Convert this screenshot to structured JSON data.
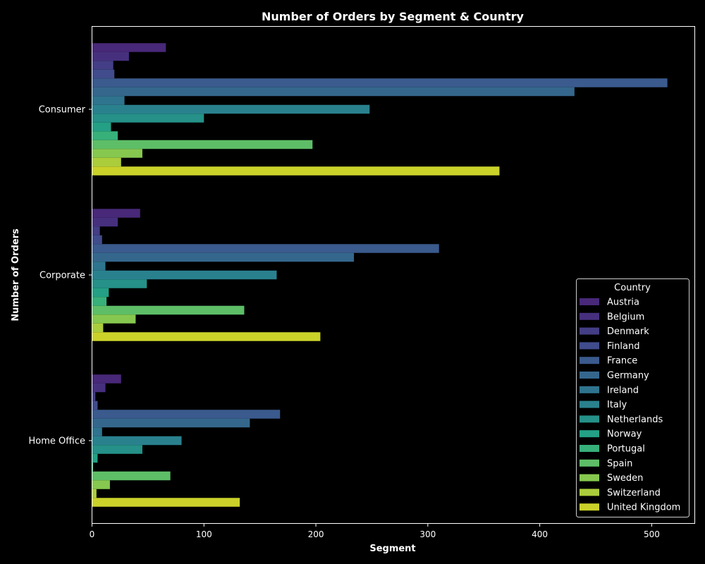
{
  "chart_data": {
    "type": "bar",
    "orientation": "horizontal",
    "title": "Number of Orders by Segment & Country",
    "xlabel": "Segment",
    "ylabel": "Number of Orders",
    "xlim": [
      0,
      540
    ],
    "xticks": [
      0,
      100,
      200,
      300,
      400,
      500
    ],
    "grid": false,
    "legend_title": "Country",
    "legend_position": "lower-right",
    "categories": [
      "Consumer",
      "Corporate",
      "Home Office"
    ],
    "series": [
      {
        "name": "Austria",
        "color": "#482878",
        "values": [
          66,
          43,
          26
        ]
      },
      {
        "name": "Belgium",
        "color": "#46307e",
        "values": [
          33,
          23,
          12
        ]
      },
      {
        "name": "Denmark",
        "color": "#433e85",
        "values": [
          19,
          7,
          3
        ]
      },
      {
        "name": "Finland",
        "color": "#404c8b",
        "values": [
          20,
          9,
          5
        ]
      },
      {
        "name": "France",
        "color": "#3b5a8d",
        "values": [
          514,
          310,
          168
        ]
      },
      {
        "name": "Germany",
        "color": "#35678c",
        "values": [
          431,
          234,
          141
        ]
      },
      {
        "name": "Ireland",
        "color": "#2f748e",
        "values": [
          29,
          12,
          9
        ]
      },
      {
        "name": "Italy",
        "color": "#2a818e",
        "values": [
          248,
          165,
          80
        ]
      },
      {
        "name": "Netherlands",
        "color": "#259188",
        "values": [
          100,
          49,
          45
        ]
      },
      {
        "name": "Norway",
        "color": "#23a085",
        "values": [
          17,
          15,
          5
        ]
      },
      {
        "name": "Portugal",
        "color": "#37b07a",
        "values": [
          23,
          13,
          1
        ]
      },
      {
        "name": "Spain",
        "color": "#5ebe67",
        "values": [
          197,
          136,
          70
        ]
      },
      {
        "name": "Sweden",
        "color": "#86c84f",
        "values": [
          45,
          39,
          16
        ]
      },
      {
        "name": "Switzerland",
        "color": "#abcd3c",
        "values": [
          26,
          10,
          4
        ]
      },
      {
        "name": "United Kingdom",
        "color": "#cad22a",
        "values": [
          364,
          204,
          132
        ]
      }
    ]
  }
}
